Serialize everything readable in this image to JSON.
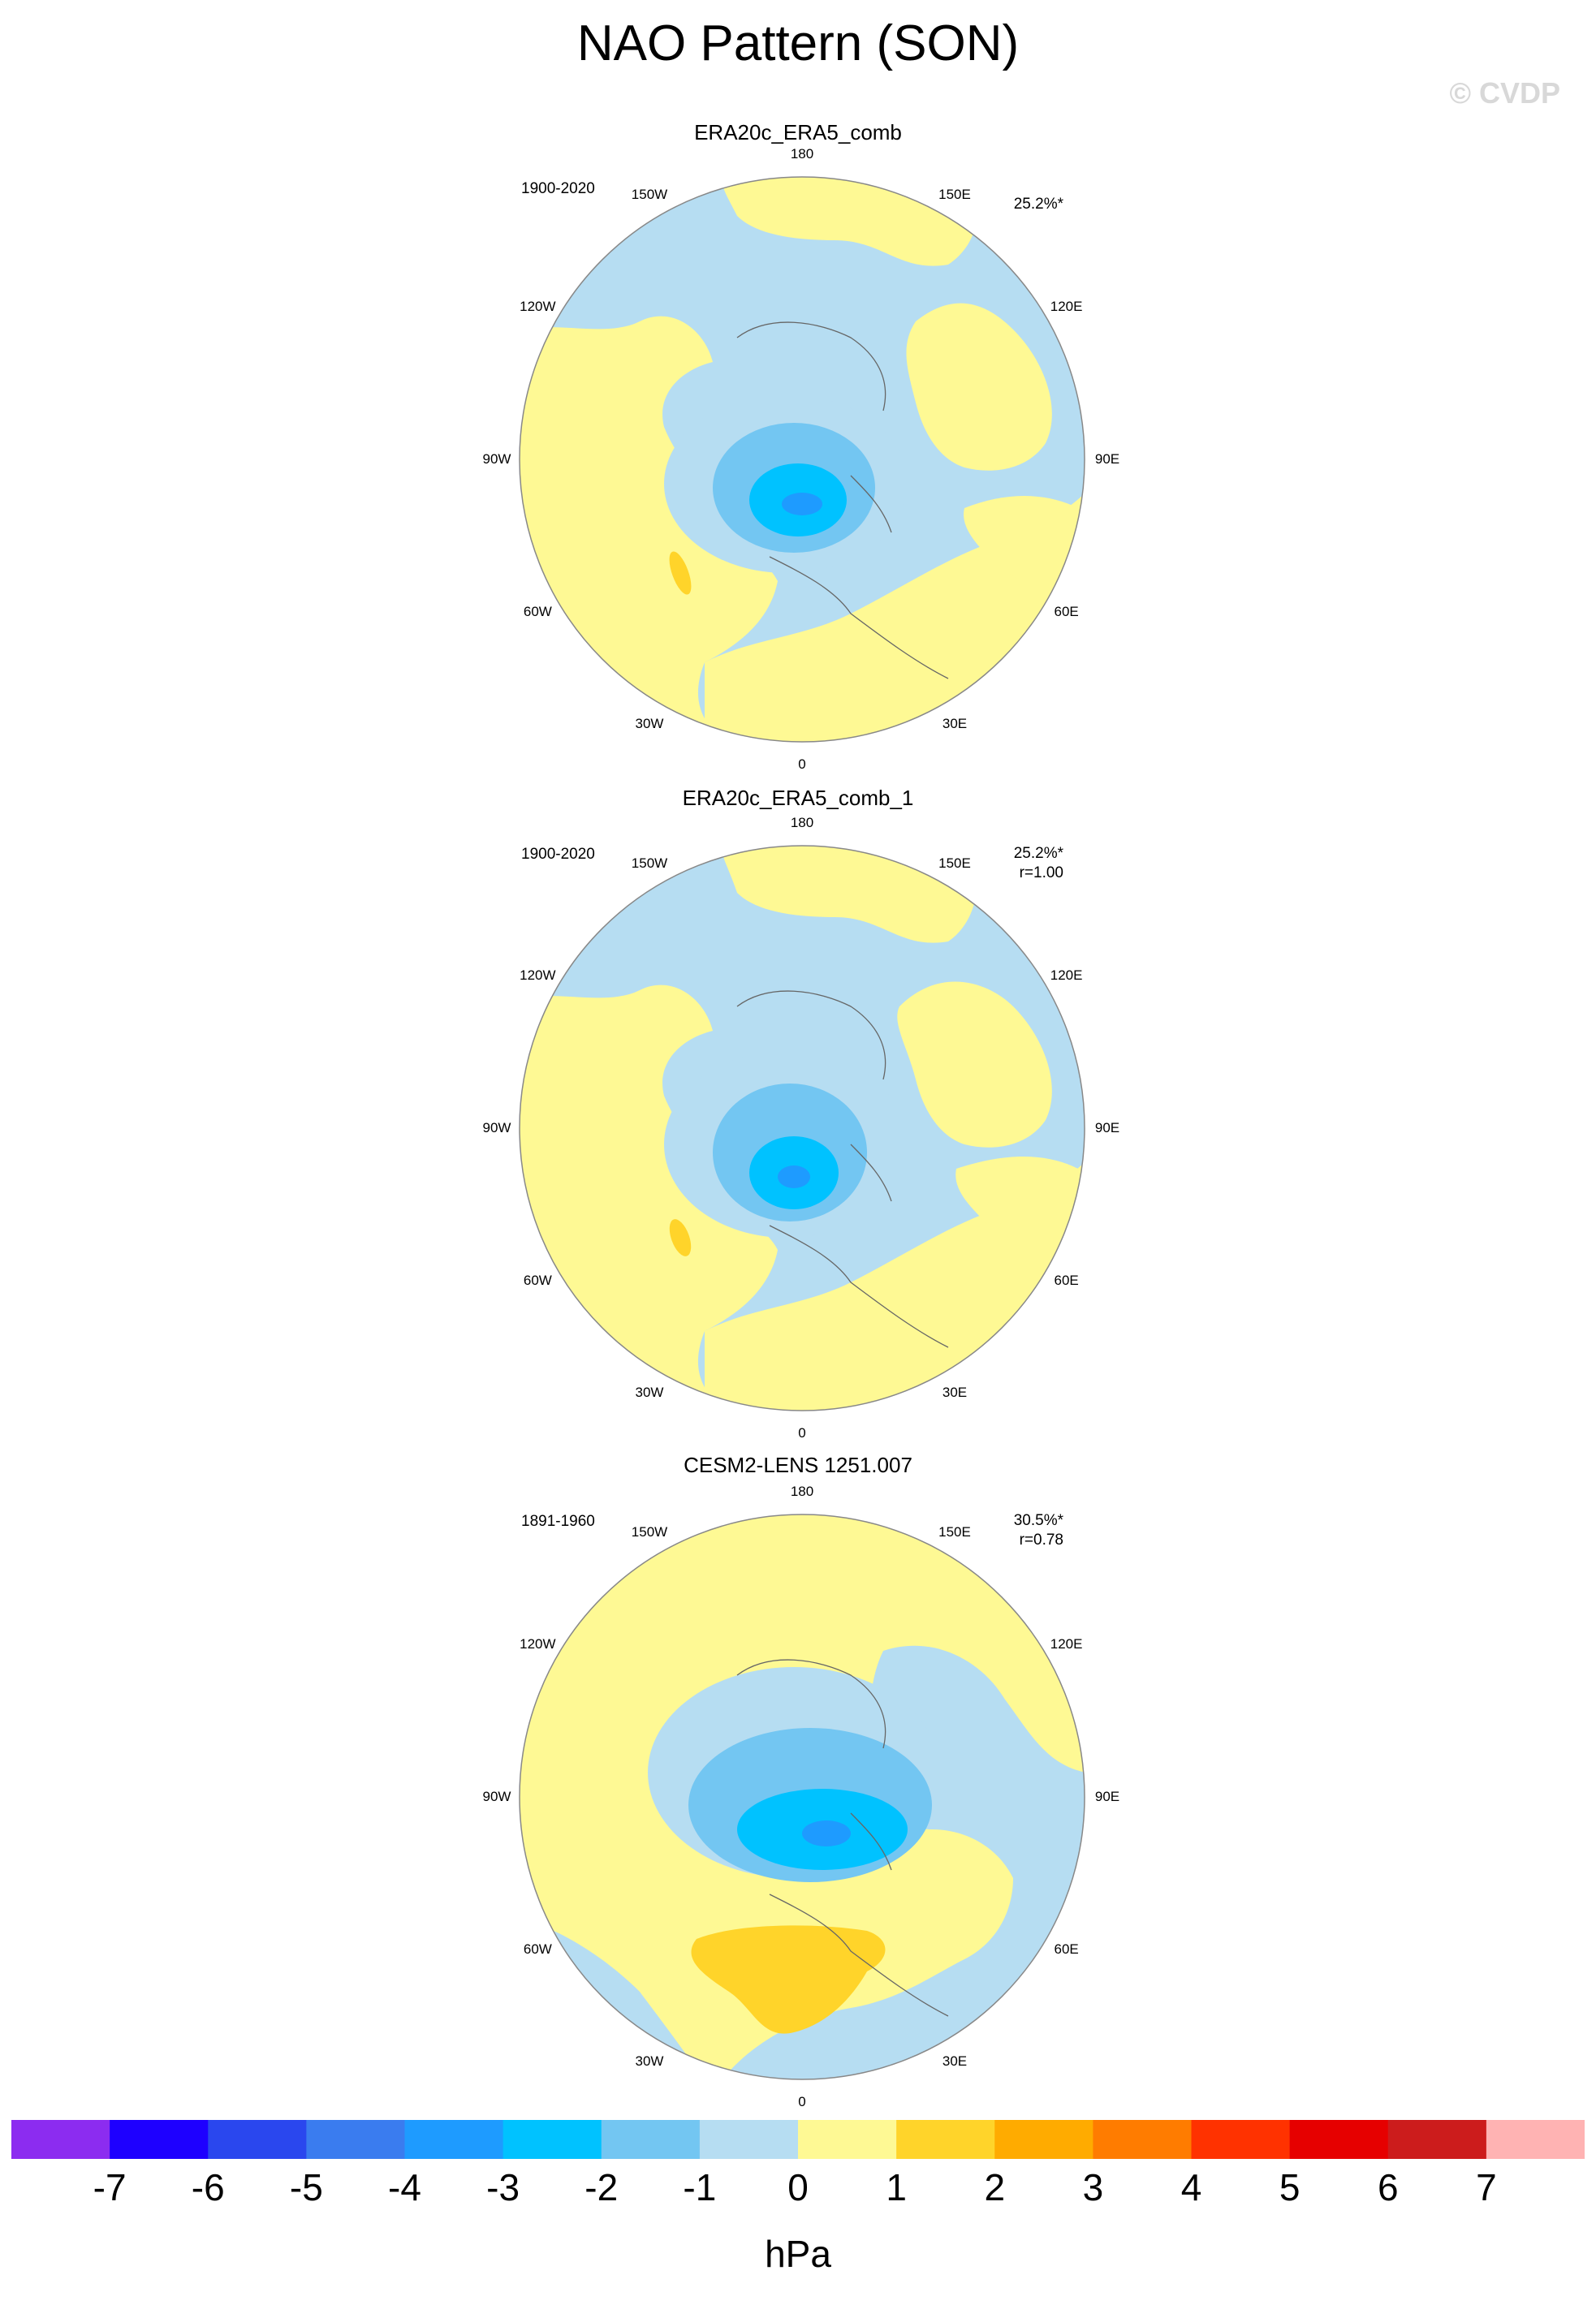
{
  "title": "NAO Pattern (SON)",
  "credit": "© CVDP",
  "longitude_labels": [
    "180",
    "150E",
    "120E",
    "90E",
    "60E",
    "30E",
    "0",
    "30W",
    "60W",
    "90W",
    "120W",
    "150W"
  ],
  "panels": [
    {
      "name": "ERA20c_ERA5_comb",
      "period": "1900-2020",
      "variance_explained": "25.2%*",
      "pattern_correlation": ""
    },
    {
      "name": "ERA20c_ERA5_comb_1",
      "period": "1900-2020",
      "variance_explained": "25.2%*",
      "pattern_correlation": "r=1.00"
    },
    {
      "name": "CESM2-LENS 1251.007",
      "period": "1891-1960",
      "variance_explained": "30.5%*",
      "pattern_correlation": "r=0.78"
    }
  ],
  "colorbar": {
    "units": "hPa",
    "tick_labels": [
      "-7",
      "-6",
      "-5",
      "-4",
      "-3",
      "-2",
      "-1",
      "0",
      "1",
      "2",
      "3",
      "4",
      "5",
      "6",
      "7"
    ],
    "colors": [
      "#8c2cf0",
      "#1e00ff",
      "#2a47ee",
      "#3a7cef",
      "#1e9bff",
      "#00c2ff",
      "#73c6f2",
      "#b6ddf2",
      "#fef994",
      "#ffd42a",
      "#ffab00",
      "#ff7c00",
      "#ff3200",
      "#e60000",
      "#cc1c1c",
      "#ffb3b3"
    ]
  },
  "map_colors": {
    "ocean_neutral": "#b6ddf2",
    "land_neutral": "#fef994",
    "coast": "#666666",
    "neg1": "#73c6f2",
    "neg2": "#00c2ff",
    "neg3": "#1e9bff",
    "pos1": "#ffd42a"
  }
}
